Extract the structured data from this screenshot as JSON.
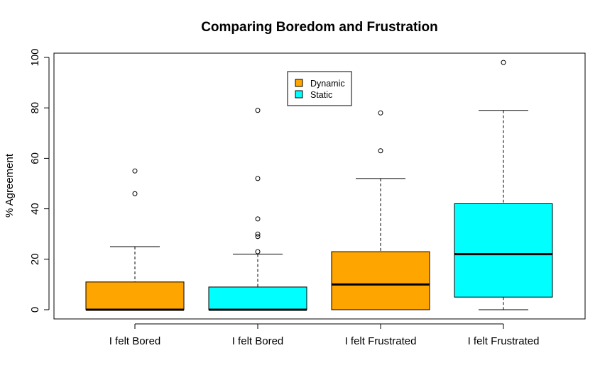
{
  "chart_data": {
    "type": "boxplot",
    "title": "Comparing Boredom and Frustration",
    "xlabel": "",
    "ylabel": "% Agreement",
    "ylim": [
      0,
      100
    ],
    "yticks": [
      0,
      20,
      40,
      60,
      80,
      100
    ],
    "categories": [
      "I felt Bored",
      "I felt Bored",
      "I felt Frustrated",
      "I felt Frustrated"
    ],
    "legend": {
      "position": "top-center",
      "entries": [
        {
          "label": "Dynamic",
          "color": "#FFA500"
        },
        {
          "label": "Static",
          "color": "#00FFFF"
        }
      ]
    },
    "boxes": [
      {
        "category": "I felt Bored",
        "group": "Dynamic",
        "color": "#FFA500",
        "whisker_low": 0,
        "q1": 0,
        "median": 0,
        "q3": 11,
        "whisker_high": 25,
        "outliers": [
          46,
          55
        ]
      },
      {
        "category": "I felt Bored",
        "group": "Static",
        "color": "#00FFFF",
        "whisker_low": 0,
        "q1": 0,
        "median": 0,
        "q3": 9,
        "whisker_high": 22,
        "outliers": [
          23,
          29,
          30,
          36,
          52,
          79
        ]
      },
      {
        "category": "I felt Frustrated",
        "group": "Dynamic",
        "color": "#FFA500",
        "whisker_low": 0,
        "q1": 0,
        "median": 10,
        "q3": 23,
        "whisker_high": 52,
        "outliers": [
          63,
          78
        ]
      },
      {
        "category": "I felt Frustrated",
        "group": "Static",
        "color": "#00FFFF",
        "whisker_low": 0,
        "q1": 5,
        "median": 22,
        "q3": 42,
        "whisker_high": 79,
        "outliers": [
          98
        ]
      }
    ]
  }
}
